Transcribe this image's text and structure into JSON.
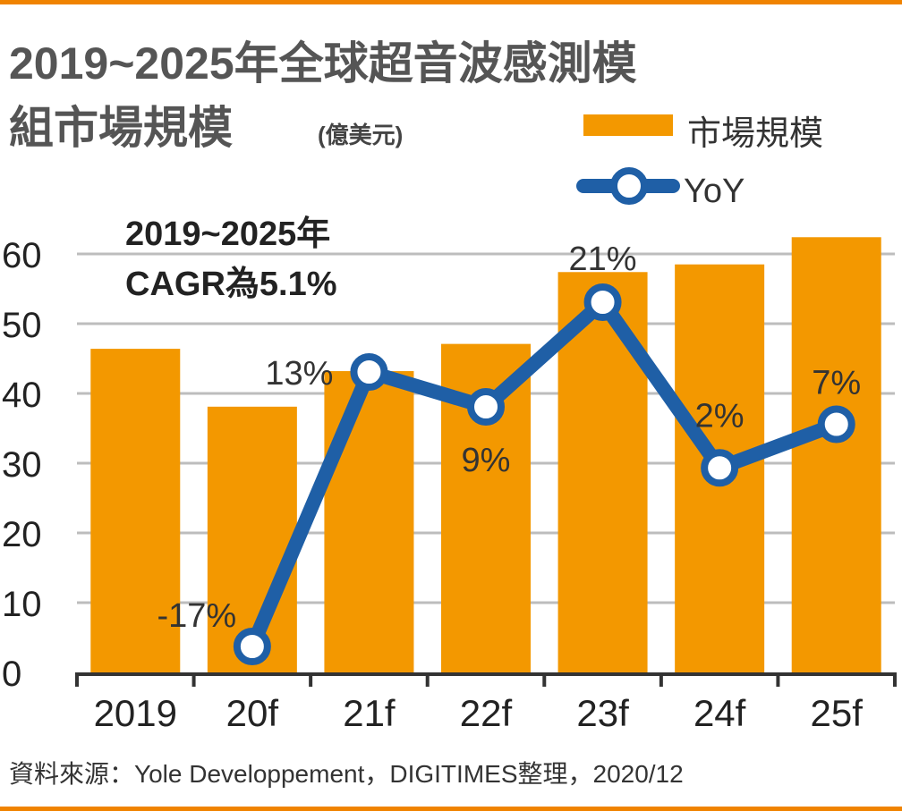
{
  "chart_data": {
    "type": "bar",
    "title_line1": "2019~2025年全球超音波感測模",
    "title_line2": "組市場規模",
    "unit": "(億美元)",
    "annotation_line1": "2019~2025年",
    "annotation_line2": "CAGR為5.1%",
    "categories": [
      "2019",
      "20f",
      "21f",
      "22f",
      "23f",
      "24f",
      "25f"
    ],
    "ylim": [
      0,
      60
    ],
    "yticks": [
      "0",
      "10",
      "20",
      "30",
      "40",
      "50",
      "60"
    ],
    "grid": true,
    "legend_placement": "top-right",
    "series": [
      {
        "name": "市場規模",
        "type": "bar",
        "color": "#F39800",
        "values": [
          46.4,
          38.1,
          43.2,
          47.1,
          57.4,
          58.5,
          62.4
        ]
      },
      {
        "name": "YoY",
        "type": "line",
        "color": "#1F5FA6",
        "marker_fill": "#ffffff",
        "values": [
          null,
          -17,
          13,
          9,
          21,
          2,
          7
        ],
        "labels": [
          "",
          "-17%",
          "13%",
          "9%",
          "21%",
          "2%",
          "7%"
        ]
      }
    ],
    "source": "資料來源：Yole Developpement，DIGITIMES整理，2020/12"
  },
  "colors": {
    "border": "#F08300",
    "grid": "#BDBDBD",
    "axis": "#333333"
  }
}
